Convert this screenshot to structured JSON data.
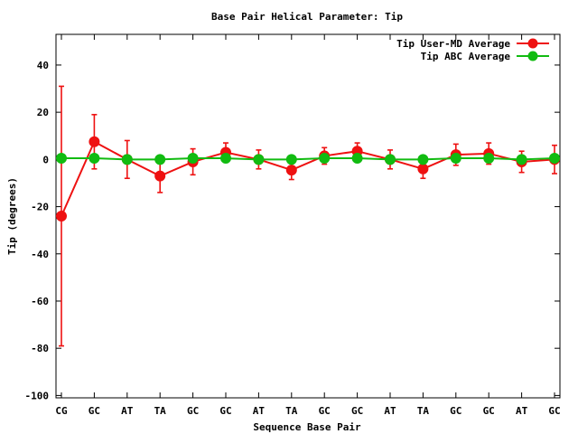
{
  "chart_data": {
    "type": "line",
    "title": "Base Pair Helical Parameter: Tip",
    "xlabel": "Sequence Base Pair",
    "ylabel": "Tip (degrees)",
    "categories": [
      "CG",
      "GC",
      "AT",
      "TA",
      "GC",
      "GC",
      "AT",
      "TA",
      "GC",
      "GC",
      "AT",
      "TA",
      "GC",
      "GC",
      "AT",
      "GC"
    ],
    "ylim": [
      -101,
      53
    ],
    "yticks": [
      -100,
      -80,
      -60,
      -40,
      -20,
      0,
      20,
      40
    ],
    "grid": false,
    "legend_position": "top-right",
    "series": [
      {
        "name": "Tip User-MD Average",
        "color": "#ee1111",
        "values": [
          -24,
          7.5,
          0,
          -7,
          -1,
          3,
          0,
          -4.5,
          1.5,
          3.5,
          0,
          -4,
          2,
          2.5,
          -1,
          0
        ],
        "errors": [
          55,
          11.5,
          8,
          7,
          5.5,
          4,
          4,
          4,
          3.5,
          3.5,
          4,
          4,
          4.5,
          4.5,
          4.5,
          6
        ]
      },
      {
        "name": "Tip ABC Average",
        "color": "#11bb11",
        "values": [
          0.5,
          0.5,
          0,
          0,
          0.5,
          0.5,
          0,
          0,
          0.5,
          0.5,
          0,
          0,
          0.5,
          0.5,
          0,
          0.5
        ],
        "errors": [
          0,
          0,
          0,
          0,
          0,
          0,
          0,
          0,
          0,
          0,
          0,
          0,
          0,
          0,
          0,
          0
        ]
      }
    ]
  }
}
